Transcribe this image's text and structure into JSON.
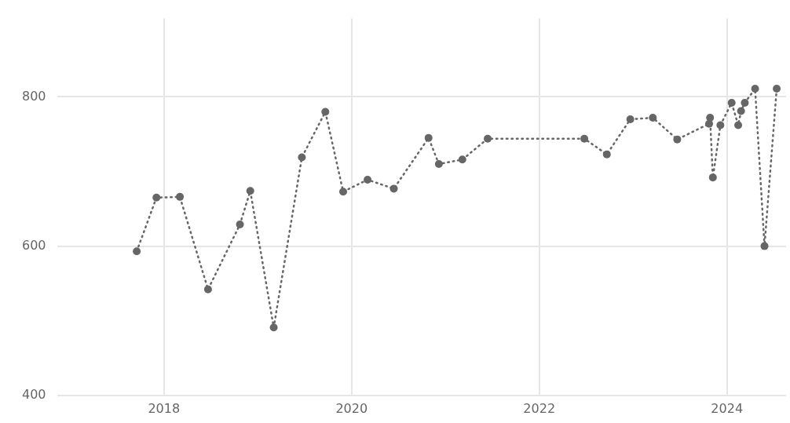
{
  "chart_data": {
    "type": "line",
    "x": [
      2017.71,
      2017.92,
      2018.17,
      2018.47,
      2018.81,
      2018.92,
      2019.17,
      2019.47,
      2019.72,
      2019.91,
      2020.17,
      2020.45,
      2020.82,
      2020.93,
      2021.18,
      2021.45,
      2022.48,
      2022.72,
      2022.97,
      2023.21,
      2023.47,
      2023.81,
      2023.82,
      2023.85,
      2023.93,
      2024.05,
      2024.12,
      2024.15,
      2024.19,
      2024.3,
      2024.4,
      2024.53
    ],
    "series": [
      {
        "color": "#666666",
        "values": [
          593,
          665,
          666,
          542,
          629,
          674,
          491,
          719,
          780,
          673,
          689,
          677,
          745,
          710,
          716,
          744,
          744,
          723,
          770,
          772,
          743,
          764,
          772,
          692,
          762,
          792,
          762,
          781,
          792,
          811,
          600,
          811
        ]
      }
    ],
    "xlim": [
      2016.86,
      2024.63
    ],
    "xticks": [
      2018,
      2020,
      2022,
      2024
    ],
    "ylim": [
      400,
      905
    ],
    "yticks": [
      400,
      600,
      800
    ],
    "grid": true,
    "legend": false,
    "marker": "circle",
    "line_style": "dotted"
  }
}
